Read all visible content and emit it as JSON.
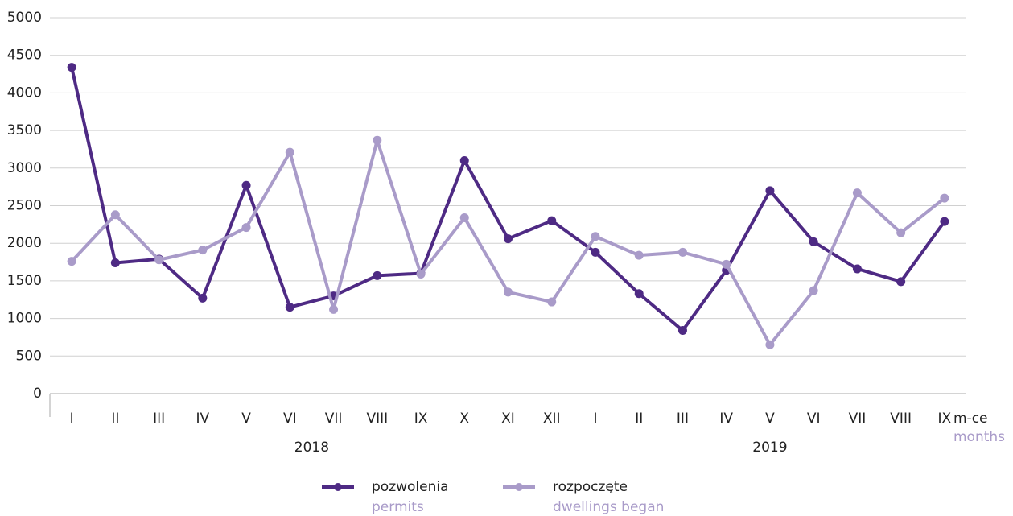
{
  "chart_data": {
    "type": "line",
    "categories": [
      "I",
      "II",
      "III",
      "IV",
      "V",
      "VI",
      "VII",
      "VIII",
      "IX",
      "X",
      "XI",
      "XII",
      "I",
      "II",
      "III",
      "IV",
      "V",
      "VI",
      "VII",
      "VIII",
      "IX"
    ],
    "years": [
      "2018",
      "2019"
    ],
    "x_label": "m-ce",
    "x_label_en": "months",
    "series": [
      {
        "name": "pozwolenia",
        "name_en": "permits",
        "color": "#4e2a84",
        "values": [
          4340,
          1740,
          1790,
          1270,
          2770,
          1150,
          1300,
          1570,
          1600,
          3100,
          2060,
          2300,
          1880,
          1330,
          840,
          1640,
          2700,
          2020,
          1660,
          1490,
          2290
        ]
      },
      {
        "name": "rozpoczęte",
        "name_en": "dwellings began",
        "color": "#a99bc9",
        "values": [
          1760,
          2380,
          1780,
          1910,
          2210,
          3210,
          1120,
          3370,
          1590,
          2340,
          1350,
          1220,
          2090,
          1840,
          1880,
          1720,
          650,
          1370,
          2670,
          2140,
          2600
        ]
      }
    ],
    "ylim": [
      0,
      5000
    ],
    "yticks": [
      0,
      500,
      1000,
      1500,
      2000,
      2500,
      3000,
      3500,
      4000,
      4500,
      5000
    ],
    "grid": true
  }
}
